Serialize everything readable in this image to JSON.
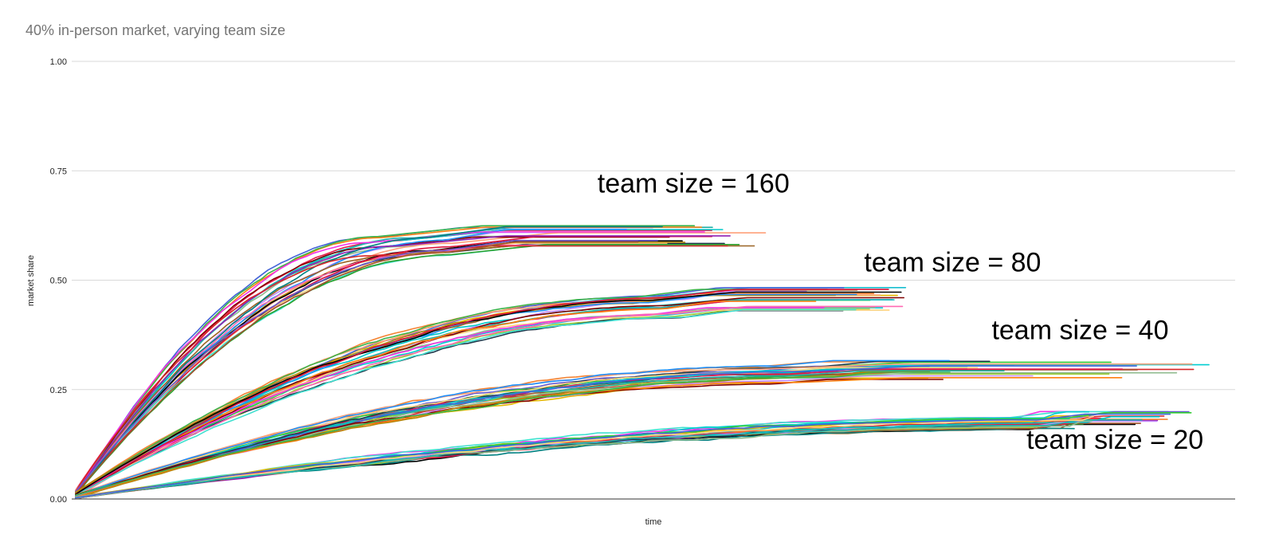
{
  "chart_data": {
    "type": "line",
    "title": "40% in-person market, varying team size",
    "xlabel": "time",
    "ylabel": "market share",
    "xlim": [
      0,
      100
    ],
    "ylim": [
      0,
      1
    ],
    "yticks": [
      "0.00",
      "0.25",
      "0.50",
      "0.75",
      "1.00"
    ],
    "grid": true,
    "legend": "none",
    "annotations": [
      {
        "text": "team size = 160",
        "x": 45,
        "y": 0.7
      },
      {
        "text": "team size = 80",
        "x": 68,
        "y": 0.52
      },
      {
        "text": "team size = 40",
        "x": 79,
        "y": 0.365
      },
      {
        "text": "team size = 20",
        "x": 82,
        "y": 0.115
      }
    ],
    "palette": [
      "#e6194b",
      "#3cb44b",
      "#f58231",
      "#4363d8",
      "#911eb4",
      "#00c8c8",
      "#f032e6",
      "#9acd32",
      "#ffa07a",
      "#008080",
      "#c58af9",
      "#9a6324",
      "#e6b800",
      "#800000",
      "#2ca02c",
      "#1f3a4d",
      "#000000",
      "#17becf",
      "#ff7f0e",
      "#d62728",
      "#8fbc8f",
      "#ff69b4",
      "#00ced1",
      "#b8860b",
      "#6a5acd",
      "#20b2aa",
      "#dc143c",
      "#32cd32",
      "#1e90ff",
      "#a0522d",
      "#ffd27f",
      "#40e0d0"
    ],
    "groups": [
      {
        "name": "team size = 160",
        "n": 26,
        "plateau": 0.605,
        "plateau_spread": 0.028,
        "knee": [
          25,
          33
        ],
        "end": [
          46,
          60
        ],
        "start": 0.012
      },
      {
        "name": "team size = 80",
        "n": 26,
        "plateau": 0.455,
        "plateau_spread": 0.03,
        "knee": [
          46,
          53
        ],
        "end": [
          63,
          72
        ],
        "start": 0.01
      },
      {
        "name": "team size = 40",
        "n": 26,
        "plateau": 0.295,
        "plateau_spread": 0.022,
        "knee": [
          58,
          66
        ],
        "end": [
          72,
          100
        ],
        "start": 0.006
      },
      {
        "name": "team size = 20",
        "n": 26,
        "plateau": 0.185,
        "plateau_spread": 0.016,
        "knee": [
          80,
          88
        ],
        "end": [
          84,
          97
        ],
        "start": 0.003
      }
    ]
  }
}
